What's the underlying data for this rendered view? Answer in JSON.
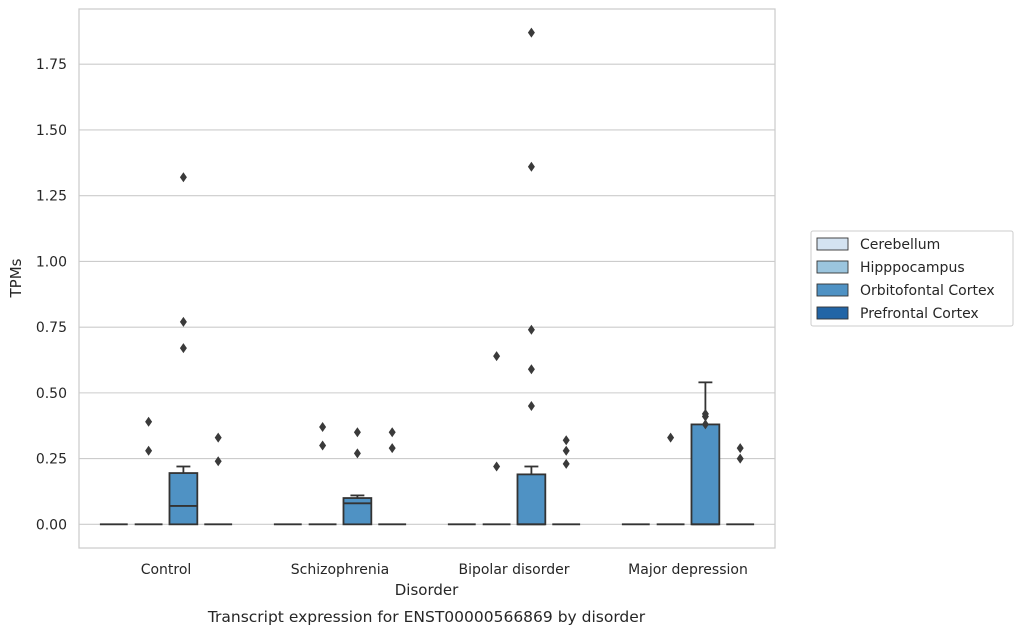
{
  "caption": "Transcript expression for ENST00000566869 by disorder",
  "colors": {
    "Cerebellum": "#d4e3f1",
    "Hipppocampus": "#9bc5de",
    "Orbitofontal Cortex": "#4f92c4",
    "Prefrontal Cortex": "#2265a6",
    "box_edge": "#333333",
    "grid": "#cccccc"
  },
  "chart_data": {
    "type": "box",
    "title": "",
    "xlabel": "Disorder",
    "ylabel": "TPMs",
    "ylim": [
      -0.09,
      1.96
    ],
    "yticks": [
      0.0,
      0.25,
      0.5,
      0.75,
      1.0,
      1.25,
      1.5,
      1.75
    ],
    "ytick_labels": [
      "0.00",
      "0.25",
      "0.50",
      "0.75",
      "1.00",
      "1.25",
      "1.50",
      "1.75"
    ],
    "grid": true,
    "legend_position": "right",
    "categories": [
      "Control",
      "Schizophrenia",
      "Bipolar disorder",
      "Major depression"
    ],
    "series": [
      {
        "name": "Cerebellum",
        "boxes": [
          {
            "q1": 0,
            "median": 0,
            "q3": 0,
            "whisker_low": 0,
            "whisker_high": 0,
            "outliers": []
          },
          {
            "q1": 0,
            "median": 0,
            "q3": 0,
            "whisker_low": 0,
            "whisker_high": 0,
            "outliers": []
          },
          {
            "q1": 0,
            "median": 0,
            "q3": 0,
            "whisker_low": 0,
            "whisker_high": 0,
            "outliers": []
          },
          {
            "q1": 0,
            "median": 0,
            "q3": 0,
            "whisker_low": 0,
            "whisker_high": 0,
            "outliers": []
          }
        ]
      },
      {
        "name": "Hipppocampus",
        "boxes": [
          {
            "q1": 0,
            "median": 0,
            "q3": 0,
            "whisker_low": 0,
            "whisker_high": 0,
            "outliers": [
              0.39,
              0.28
            ]
          },
          {
            "q1": 0,
            "median": 0,
            "q3": 0,
            "whisker_low": 0,
            "whisker_high": 0,
            "outliers": [
              0.37,
              0.3
            ]
          },
          {
            "q1": 0,
            "median": 0,
            "q3": 0,
            "whisker_low": 0,
            "whisker_high": 0,
            "outliers": [
              0.64,
              0.22
            ]
          },
          {
            "q1": 0,
            "median": 0,
            "q3": 0,
            "whisker_low": 0,
            "whisker_high": 0,
            "outliers": [
              0.33
            ]
          }
        ]
      },
      {
        "name": "Orbitofontal Cortex",
        "boxes": [
          {
            "q1": 0,
            "median": 0.07,
            "q3": 0.195,
            "whisker_low": 0,
            "whisker_high": 0.22,
            "outliers": [
              1.32,
              0.77,
              0.67
            ]
          },
          {
            "q1": 0,
            "median": 0.08,
            "q3": 0.1,
            "whisker_low": 0,
            "whisker_high": 0.11,
            "outliers": [
              0.35,
              0.27
            ]
          },
          {
            "q1": 0,
            "median": 0,
            "q3": 0.19,
            "whisker_low": 0,
            "whisker_high": 0.22,
            "outliers": [
              1.87,
              1.36,
              0.74,
              0.59,
              0.45
            ]
          },
          {
            "q1": 0,
            "median": 0,
            "q3": 0.38,
            "whisker_low": 0,
            "whisker_high": 0.54,
            "outliers": [
              0.42,
              0.41,
              0.38
            ]
          }
        ]
      },
      {
        "name": "Prefrontal Cortex",
        "boxes": [
          {
            "q1": 0,
            "median": 0,
            "q3": 0,
            "whisker_low": 0,
            "whisker_high": 0,
            "outliers": [
              0.33,
              0.24
            ]
          },
          {
            "q1": 0,
            "median": 0,
            "q3": 0,
            "whisker_low": 0,
            "whisker_high": 0,
            "outliers": [
              0.35,
              0.29
            ]
          },
          {
            "q1": 0,
            "median": 0,
            "q3": 0,
            "whisker_low": 0,
            "whisker_high": 0,
            "outliers": [
              0.32,
              0.28,
              0.23
            ]
          },
          {
            "q1": 0,
            "median": 0,
            "q3": 0,
            "whisker_low": 0,
            "whisker_high": 0,
            "outliers": [
              0.29,
              0.25
            ]
          }
        ]
      }
    ]
  }
}
